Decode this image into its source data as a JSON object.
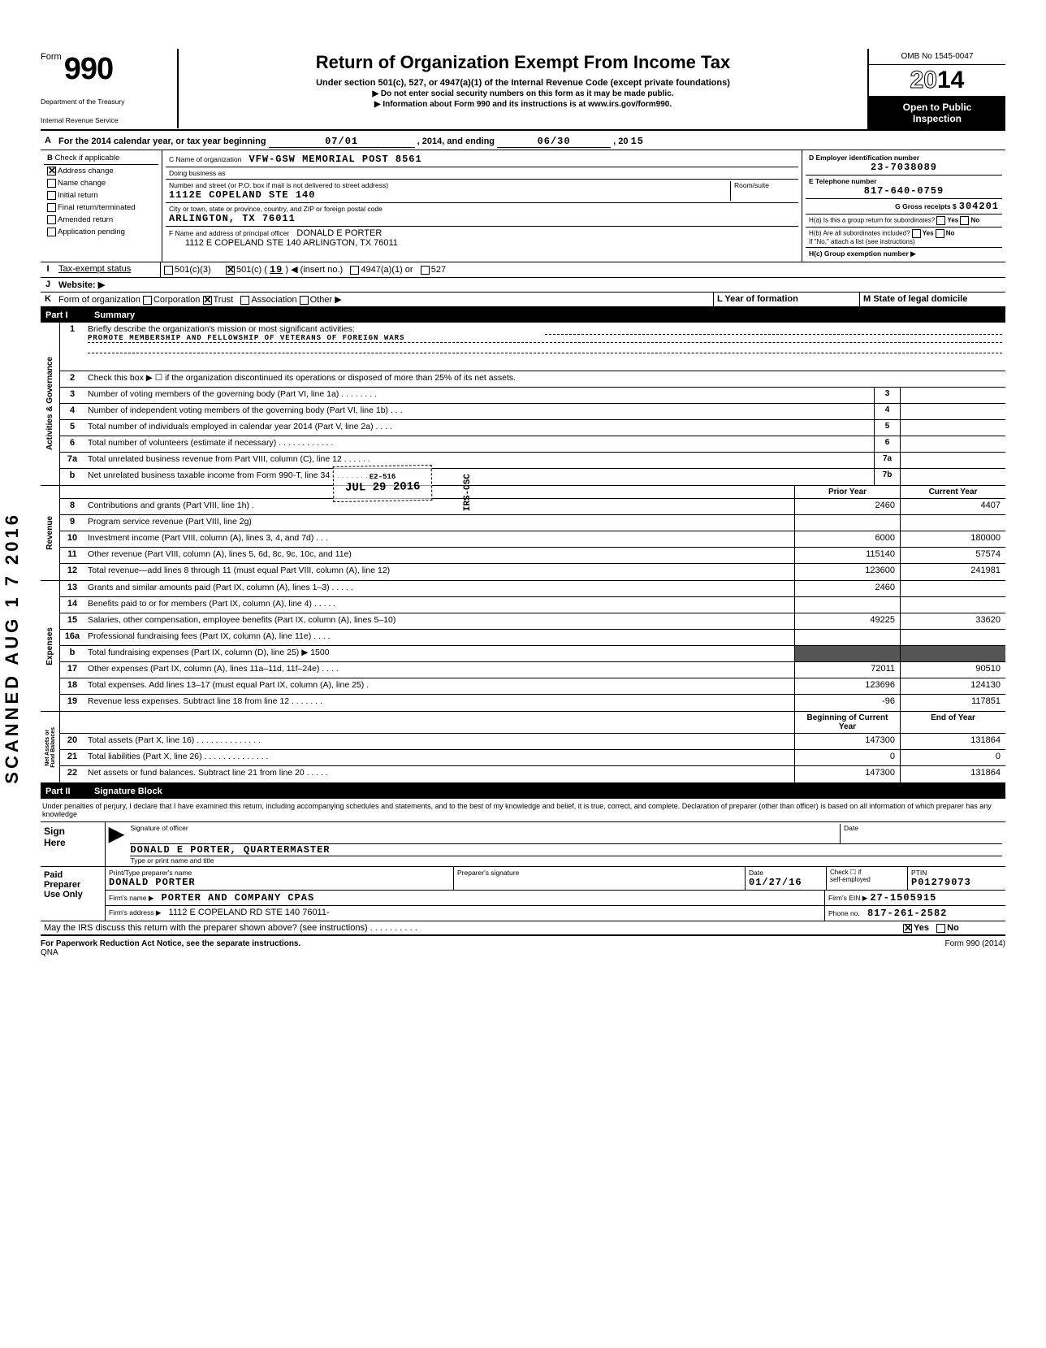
{
  "header": {
    "form_word": "Form",
    "form_number": "990",
    "title": "Return of Organization Exempt From Income Tax",
    "subtitle": "Under section 501(c), 527, or 4947(a)(1) of the Internal Revenue Code (except private foundations)",
    "no_ssn": "▶ Do not enter social security numbers on this form as it may be made public.",
    "info": "▶ Information about Form 990 and its instructions is at www.irs.gov/form990.",
    "dept1": "Department of the Treasury",
    "dept2": "Internal Revenue Service",
    "omb": "OMB No 1545-0047",
    "year_outline": "20",
    "year_solid": "14",
    "open1": "Open to Public",
    "open2": "Inspection"
  },
  "line_a": {
    "label": "A",
    "text": "For the 2014 calendar year, or tax year beginning",
    "begin": "07/01",
    "mid": ", 2014, and ending",
    "end": "06/30",
    "end2": ", 20",
    "year2": "15"
  },
  "section_b": {
    "b_label": "B",
    "check_if": "Check if applicable",
    "checks": [
      {
        "label": "Address change",
        "checked": true
      },
      {
        "label": "Name change",
        "checked": false
      },
      {
        "label": "Initial return",
        "checked": false
      },
      {
        "label": "Final return/terminated",
        "checked": false
      },
      {
        "label": "Amended return",
        "checked": false
      },
      {
        "label": "Application pending",
        "checked": false
      }
    ],
    "c_label": "C Name of organization",
    "c_value": "VFW-GSW MEMORIAL POST 8561",
    "dba_label": "Doing business as",
    "street_label": "Number and street (or P.O. box if mail is not delivered to street address)",
    "room_label": "Room/suite",
    "street_value": "1112E COPELAND STE 140",
    "city_label": "City or town, state or province, country, and ZIP or foreign postal code",
    "city_value": "ARLINGTON, TX 76011",
    "f_label": "F Name and address of principal officer",
    "f_name": "DONALD E PORTER",
    "f_addr": "1112 E COPELAND STE 140 ARLINGTON, TX 76011",
    "d_label": "D Employer identification number",
    "d_value": "23-7038089",
    "e_label": "E Telephone number",
    "e_value": "817-640-0759",
    "g_label": "G Gross receipts $",
    "g_value": "304201",
    "ha_label": "H(a) Is this a group return for subordinates?",
    "hb_label": "H(b) Are all subordinates included?",
    "h_yes": "Yes",
    "h_no": "No",
    "h_note": "If \"No,\" attach a list (see instructions)",
    "hc_label": "H(c) Group exemption number ▶"
  },
  "line_i": {
    "label": "I",
    "text": "Tax-exempt status",
    "opt1": "501(c)(3)",
    "opt2_pre": "501(c) (",
    "opt2_num": "19",
    "opt2_post": ") ◀ (insert no.)",
    "opt3": "4947(a)(1) or",
    "opt4": "527"
  },
  "line_j": {
    "label": "J",
    "text": "Website: ▶"
  },
  "line_k": {
    "label": "K",
    "text": "Form of organization",
    "corp": "Corporation",
    "trust": "Trust",
    "assoc": "Association",
    "other": "Other ▶",
    "l_label": "L Year of formation",
    "m_label": "M State of legal domicile"
  },
  "part1": {
    "num": "Part I",
    "title": "Summary",
    "side_gov": "Activities & Governance",
    "side_rev": "Revenue",
    "side_exp": "Expenses",
    "side_net": "Net Assets or\nFund Balances",
    "line1_num": "1",
    "line1_text": "Briefly describe the organization's mission or most significant activities:",
    "line1_val": "PROMOTE MEMBERSHIP AND FELLOWSHIP OF VETERANS OF FOREIGN WARS",
    "line2_num": "2",
    "line2_text": "Check this box ▶ ☐ if the organization discontinued its operations or disposed of more than 25% of its net assets.",
    "prior_year": "Prior Year",
    "current_year": "Current Year",
    "beg_year": "Beginning of Current Year",
    "end_year": "End of Year",
    "stamp_date": "JUL 29 2016",
    "stamp_irs": "IRS-OSC",
    "stamp_code": "E2-516",
    "gov_lines": [
      {
        "n": "3",
        "t": "Number of voting members of the governing body (Part VI, line 1a) .  .  .  .  .  .  .  .",
        "box": "3",
        "v": ""
      },
      {
        "n": "4",
        "t": "Number of independent voting members of the governing body (Part VI, line 1b)  .  .  .",
        "box": "4",
        "v": ""
      },
      {
        "n": "5",
        "t": "Total number of individuals employed in calendar year 2014 (Part V, line 2a)  .  .  .  .",
        "box": "5",
        "v": ""
      },
      {
        "n": "6",
        "t": "Total number of volunteers (estimate if necessary)  .  .  .  .  .  .  .  .  .  .  .  .",
        "box": "6",
        "v": ""
      },
      {
        "n": "7a",
        "t": "Total unrelated business revenue from Part VIII, column (C), line 12  .  .  .  .  .  .",
        "box": "7a",
        "v": ""
      },
      {
        "n": "b",
        "t": "Net unrelated business taxable income from Form 990-T, line 34  .  .  .  .  .  .  .  .",
        "box": "7b",
        "v": ""
      }
    ],
    "rev_lines": [
      {
        "n": "8",
        "t": "Contributions and grants (Part VIII, line 1h) .",
        "py": "2460",
        "cy": "4407"
      },
      {
        "n": "9",
        "t": "Program service revenue (Part VIII, line 2g)",
        "py": "",
        "cy": ""
      },
      {
        "n": "10",
        "t": "Investment income (Part VIII, column (A), lines 3, 4, and 7d)  .  .  .",
        "py": "6000",
        "cy": "180000"
      },
      {
        "n": "11",
        "t": "Other revenue (Part VIII, column (A), lines 5, 6d, 8c, 9c, 10c, and 11e)",
        "py": "115140",
        "cy": "57574"
      },
      {
        "n": "12",
        "t": "Total revenue—add lines 8 through 11 (must equal Part VIII, column (A), line 12)",
        "py": "123600",
        "cy": "241981"
      }
    ],
    "exp_lines": [
      {
        "n": "13",
        "t": "Grants and similar amounts paid (Part IX, column (A), lines 1–3) .  .  .  .  .",
        "py": "2460",
        "cy": ""
      },
      {
        "n": "14",
        "t": "Benefits paid to or for members (Part IX, column (A), line 4)  .  .  .  .  .",
        "py": "",
        "cy": ""
      },
      {
        "n": "15",
        "t": "Salaries, other compensation, employee benefits (Part IX, column (A), lines 5–10)",
        "py": "49225",
        "cy": "33620"
      },
      {
        "n": "16a",
        "t": "Professional fundraising fees (Part IX, column (A), line 11e)  .  .  .  .",
        "py": "",
        "cy": ""
      },
      {
        "n": "b",
        "t": "Total fundraising expenses (Part IX, column (D), line 25) ▶           1500",
        "py": "shaded",
        "cy": "shaded"
      },
      {
        "n": "17",
        "t": "Other expenses (Part IX, column (A), lines 11a–11d, 11f–24e)  .  .  .  .",
        "py": "72011",
        "cy": "90510"
      },
      {
        "n": "18",
        "t": "Total expenses. Add lines 13–17 (must equal Part IX, column (A), line 25)  .",
        "py": "123696",
        "cy": "124130"
      },
      {
        "n": "19",
        "t": "Revenue less expenses. Subtract line 18 from line 12  .  .  .  .  .  .  .",
        "py": "-96",
        "cy": "117851"
      }
    ],
    "net_lines": [
      {
        "n": "20",
        "t": "Total assets (Part X, line 16)  .  .  .  .  .  .  .  .  .  .  .  .  .  .",
        "py": "147300",
        "cy": "131864"
      },
      {
        "n": "21",
        "t": "Total liabilities (Part X, line 26) .  .  .  .  .  .  .  .  .  .  .  .  .  .",
        "py": "0",
        "cy": "0"
      },
      {
        "n": "22",
        "t": "Net assets or fund balances. Subtract line 21 from line 20  .  .  .  .  .",
        "py": "147300",
        "cy": "131864"
      }
    ]
  },
  "part2": {
    "num": "Part II",
    "title": "Signature Block",
    "perjury": "Under penalties of perjury, I declare that I have examined this return, including accompanying schedules and statements, and to the best of my knowledge and belief, it is true, correct, and complete. Declaration of preparer (other than officer) is based on all information of which preparer has any knowledge",
    "sign_here": "Sign\nHere",
    "sig_officer": "Signature of officer",
    "date_label": "Date",
    "officer_name": "DONALD E PORTER, QUARTERMASTER",
    "type_name": "Type or print name and title",
    "paid_prep": "Paid\nPreparer\nUse Only",
    "prep_name_label": "Print/Type preparer's name",
    "prep_name": "DONALD PORTER",
    "prep_sig_label": "Preparer's signature",
    "prep_date": "01/27/16",
    "check_if": "Check ☐ if",
    "self_emp": "self-employed",
    "ptin_label": "PTIN",
    "ptin": "P01279073",
    "firm_name_label": "Firm's name   ▶",
    "firm_name": "PORTER AND COMPANY CPAS",
    "firm_ein_label": "Firm's EIN ▶",
    "firm_ein": "27-1505915",
    "firm_addr_label": "Firm's address ▶",
    "firm_addr": "1112 E COPELAND RD STE 140 76011-",
    "phone_label": "Phone no.",
    "phone": "817-261-2582",
    "may_irs": "May the IRS discuss this return with the preparer shown above? (see instructions)  .  .  .  .  .  .  .  .  .  .",
    "yes": "Yes",
    "no": "No"
  },
  "footer": {
    "left": "For Paperwork Reduction Act Notice, see the separate instructions.",
    "qna": "QNA",
    "right": "Form 990 (2014)"
  },
  "scan_stamp": "SCANNED AUG 1 7 2016"
}
